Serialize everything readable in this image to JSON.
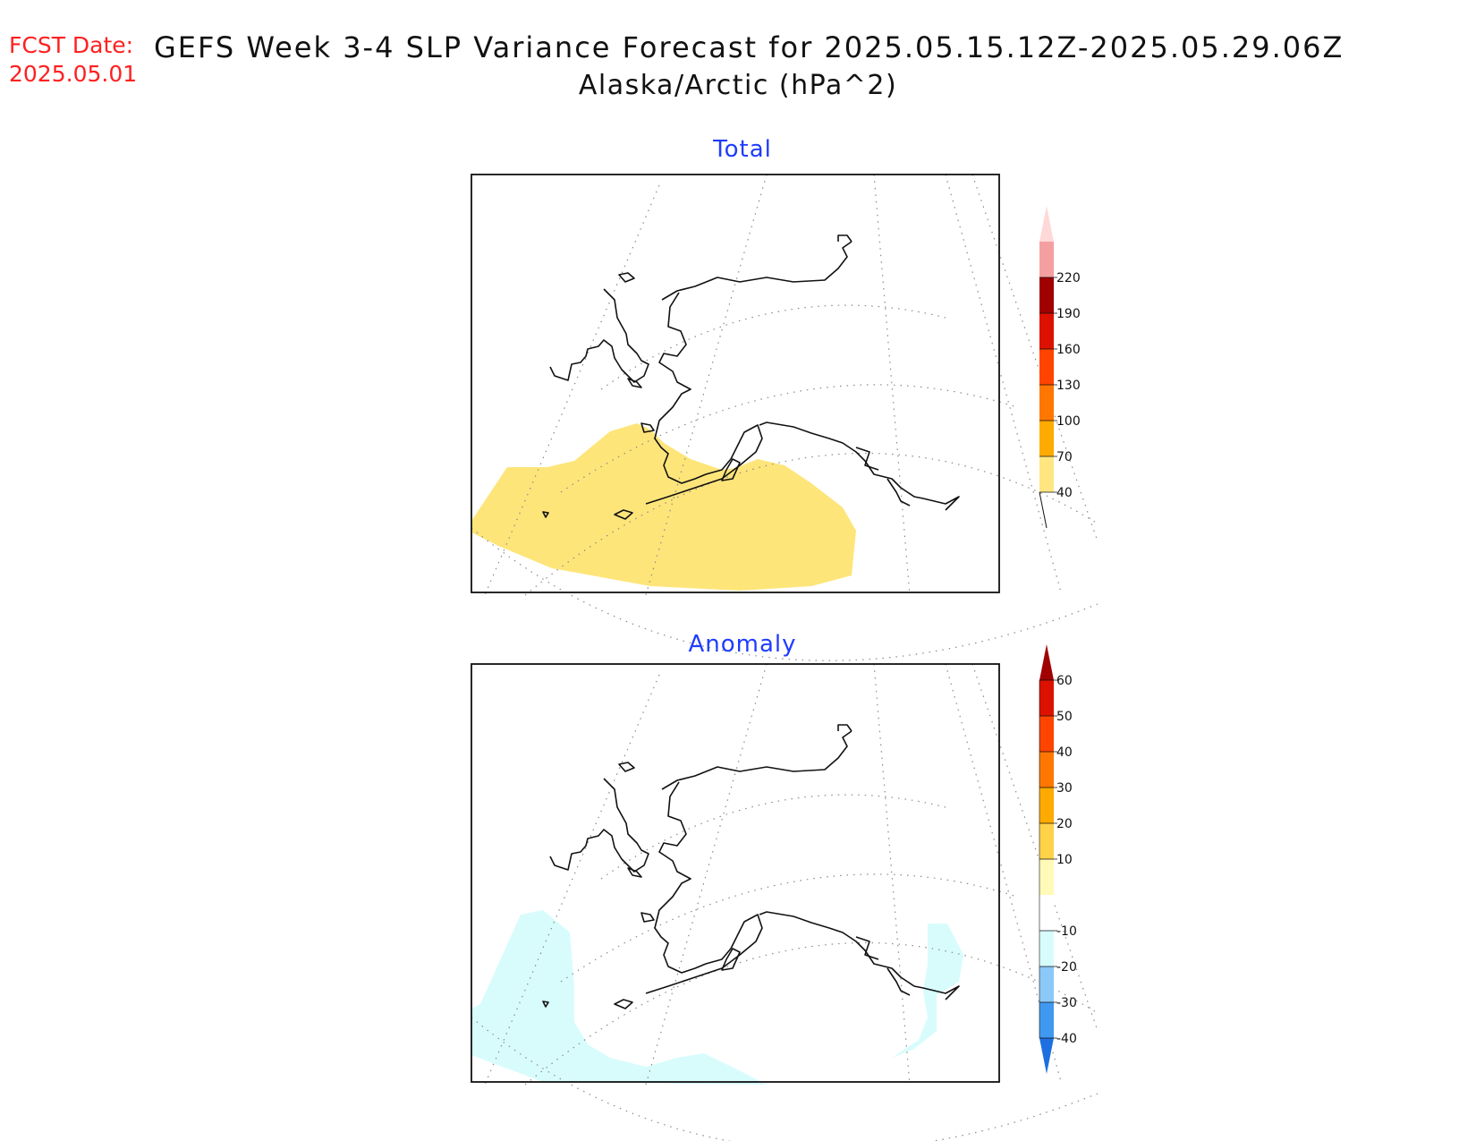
{
  "header": {
    "fcst_label": "FCST Date:",
    "fcst_date": "2025.05.01",
    "title": "GEFS Week 3-4 SLP Variance Forecast for 2025.05.15.12Z-2025.05.29.06Z",
    "subtitle": "Alaska/Arctic (hPa^2)"
  },
  "panels": [
    {
      "title": "Total",
      "colorbar": {
        "labels": [
          "40",
          "70",
          "100",
          "130",
          "160",
          "190",
          "220"
        ],
        "colors": [
          "#ffe680",
          "#ffaa00",
          "#ff7700",
          "#ff4400",
          "#dd1100",
          "#a00000",
          "#f4a0a0",
          "#ffd8d8"
        ]
      },
      "shaded_field_color": "#fee57a"
    },
    {
      "title": "Anomaly",
      "colorbar": {
        "labels": [
          "-40",
          "-30",
          "-20",
          "-10",
          "10",
          "20",
          "30",
          "40",
          "50",
          "60"
        ],
        "colors": [
          "#1e6fe0",
          "#4099f0",
          "#8cc8f8",
          "#d8fcfc",
          "#ffffff",
          "#fffab8",
          "#ffd24a",
          "#ffaa00",
          "#ff7700",
          "#ff4400",
          "#dd1100",
          "#a00000"
        ]
      },
      "shaded_field_color": "#d8fcfc"
    }
  ]
}
